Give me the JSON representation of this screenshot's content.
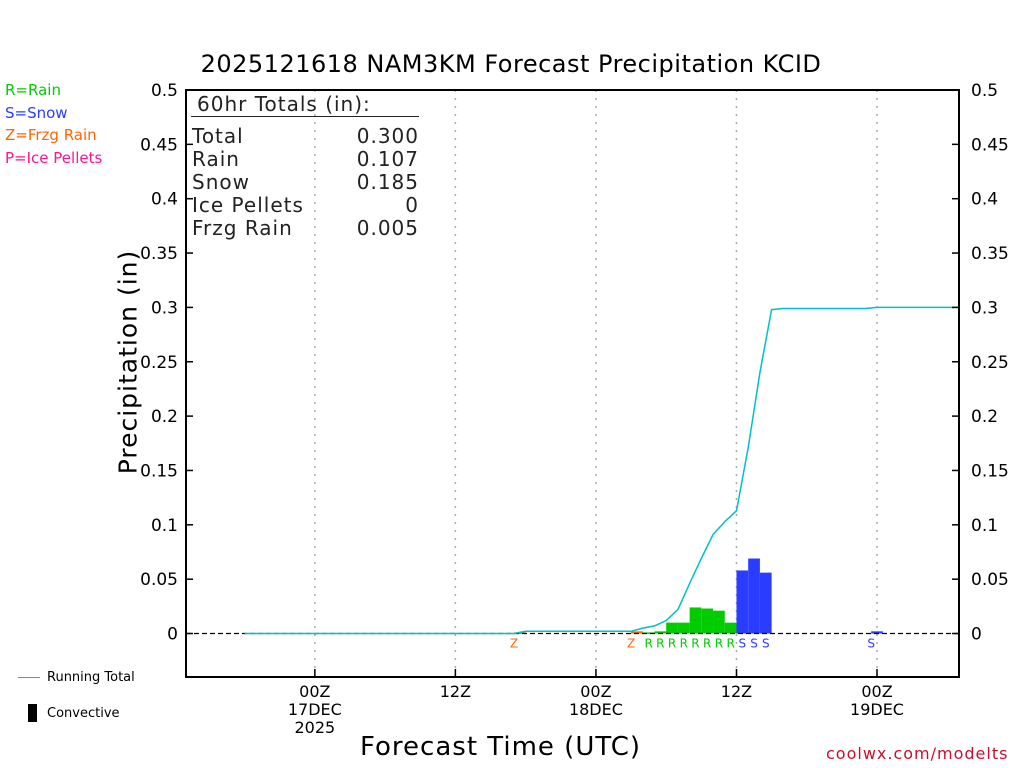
{
  "chart_data": {
    "type": "bar",
    "title": "2025121618 NAM3KM Forecast Precipitation KCID",
    "xlabel": "Forecast Time (UTC)",
    "ylabel": "Precipitation (in)",
    "ylim": [
      -0.04,
      0.5
    ],
    "y_ticks": [
      "0",
      "0.05",
      "0.1",
      "0.15",
      "0.2",
      "0.25",
      "0.3",
      "0.35",
      "0.4",
      "0.45",
      "0.5"
    ],
    "x_unit": "forecast hour",
    "xlim": [
      -5,
      61
    ],
    "x_ticks": [
      {
        "hour": 6,
        "lines": [
          "00Z",
          "17DEC",
          "2025"
        ]
      },
      {
        "hour": 18,
        "lines": [
          "12Z"
        ]
      },
      {
        "hour": 30,
        "lines": [
          "00Z",
          "18DEC"
        ]
      },
      {
        "hour": 42,
        "lines": [
          "12Z"
        ]
      },
      {
        "hour": 54,
        "lines": [
          "00Z",
          "19DEC"
        ]
      }
    ],
    "bars": [
      {
        "hour": 23,
        "value": 0.001,
        "type": "Z"
      },
      {
        "hour": 33,
        "value": 0.002,
        "type": "Z"
      },
      {
        "hour": 34,
        "value": 0.001,
        "type": "R"
      },
      {
        "hour": 35,
        "value": 0.002,
        "type": "R"
      },
      {
        "hour": 36,
        "value": 0.01,
        "type": "R"
      },
      {
        "hour": 37,
        "value": 0.01,
        "type": "R"
      },
      {
        "hour": 38,
        "value": 0.024,
        "type": "R"
      },
      {
        "hour": 39,
        "value": 0.023,
        "type": "R"
      },
      {
        "hour": 40,
        "value": 0.021,
        "type": "R"
      },
      {
        "hour": 41,
        "value": 0.01,
        "type": "R"
      },
      {
        "hour": 42,
        "value": 0.058,
        "type": "S"
      },
      {
        "hour": 43,
        "value": 0.069,
        "type": "S"
      },
      {
        "hour": 44,
        "value": 0.056,
        "type": "S"
      },
      {
        "hour": 53.5,
        "value": 0.002,
        "type": "S"
      }
    ],
    "type_labels": [
      {
        "hour": 23,
        "type": "Z"
      },
      {
        "hour": 33,
        "type": "Z"
      },
      {
        "hour": 34.5,
        "type": "R"
      },
      {
        "hour": 35.5,
        "type": "R"
      },
      {
        "hour": 36.5,
        "type": "R"
      },
      {
        "hour": 37.5,
        "type": "R"
      },
      {
        "hour": 38.5,
        "type": "R"
      },
      {
        "hour": 39.5,
        "type": "R"
      },
      {
        "hour": 40.5,
        "type": "R"
      },
      {
        "hour": 41.5,
        "type": "R"
      },
      {
        "hour": 42.5,
        "type": "S"
      },
      {
        "hour": 43.5,
        "type": "S"
      },
      {
        "hour": 44.5,
        "type": "S"
      },
      {
        "hour": 53.5,
        "type": "S"
      }
    ],
    "series": [
      {
        "name": "Running Total",
        "x": [
          0,
          23,
          24,
          33,
          34,
          35,
          36,
          37,
          38,
          39,
          40,
          41,
          42,
          43,
          44,
          45,
          46,
          47,
          48,
          49,
          50,
          51,
          52,
          53,
          54,
          55,
          56,
          57,
          58,
          59,
          60,
          61
        ],
        "y": [
          0,
          0,
          0.002,
          0.002,
          0.005,
          0.007,
          0.012,
          0.022,
          0.046,
          0.069,
          0.091,
          0.103,
          0.113,
          0.171,
          0.24,
          0.298,
          0.299,
          0.299,
          0.299,
          0.299,
          0.299,
          0.299,
          0.299,
          0.299,
          0.3,
          0.3,
          0.3,
          0.3,
          0.3,
          0.3,
          0.3,
          0.3
        ]
      }
    ],
    "colors": {
      "R": "#00cc00",
      "S": "#2a3cff",
      "Z": "#ff6600",
      "P": "#ff1493",
      "line": "#00c0c8",
      "zero_line": "#000000"
    }
  },
  "legend": {
    "rain": "R=Rain",
    "snow": "S=Snow",
    "frzg": "Z=Frzg Rain",
    "ice": "P=Ice Pellets",
    "running_total": "Running Total",
    "convective": "Convective"
  },
  "totals": {
    "header": "60hr Totals (in):",
    "rows": [
      {
        "label": "Total",
        "value": "0.300"
      },
      {
        "label": "Rain",
        "value": "0.107"
      },
      {
        "label": "Snow",
        "value": "0.185"
      },
      {
        "label": "Ice Pellets",
        "value": "0"
      },
      {
        "label": "Frzg Rain",
        "value": "0.005"
      }
    ]
  },
  "credit": "coolwx.com/modelts"
}
